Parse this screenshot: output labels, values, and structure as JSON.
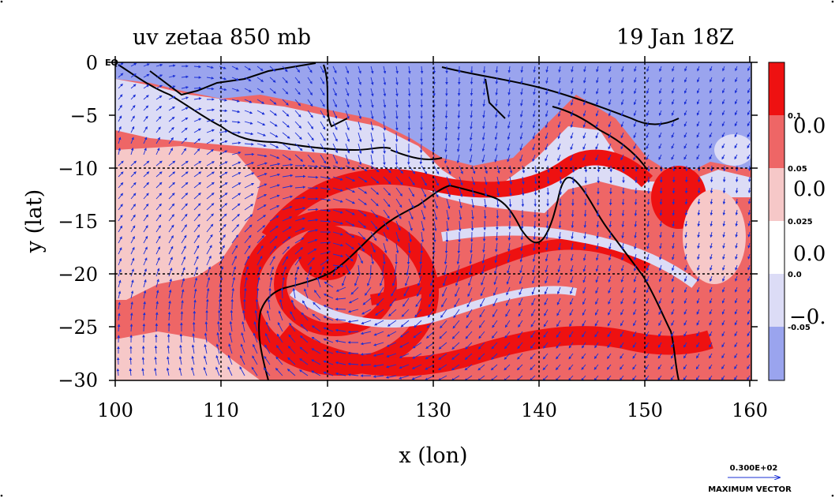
{
  "title_left": "uv  zetaa 850 mb",
  "title_right": "19 Jan 18Z",
  "x_axis_label": "x (lon)",
  "y_axis_label": "y (lat)",
  "corner_label": "EQ",
  "x_ticks": [
    "100",
    "110",
    "120",
    "130",
    "140",
    "150",
    "160"
  ],
  "y_ticks": [
    "0",
    "−5",
    "−10",
    "−15",
    "−20",
    "−25",
    "−30"
  ],
  "colorbar": {
    "small_labels": [
      "0.1",
      "0.05",
      "0.025",
      "0.0",
      "-0.05"
    ],
    "large_labels": [
      "0.0",
      "0.0",
      "0.0",
      "−0."
    ],
    "colors": [
      "#ee1111",
      "#ee6666",
      "#f6c8c8",
      "#ffffff",
      "#dcdcf6",
      "#9aa4ee"
    ]
  },
  "vector_legend": {
    "value": "0.300E+02",
    "caption": "MAXIMUM VECTOR"
  },
  "colors": {
    "strong_pos": "#ee1111",
    "mid_pos": "#ee6666",
    "weak_pos": "#f6c8c8",
    "zero": "#ffffff",
    "weak_neg": "#dcdcf6",
    "strong_neg": "#9aa4ee",
    "vector": "#1a2fd6",
    "coast": "#000000"
  },
  "map_extent": {
    "lon": [
      100,
      160
    ],
    "lat": [
      -30,
      0
    ]
  }
}
